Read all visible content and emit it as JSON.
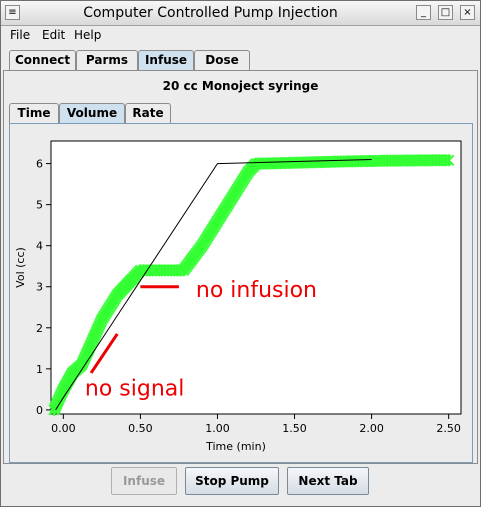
{
  "window": {
    "title": "Computer Controlled Pump Injection"
  },
  "menu": [
    "File",
    "Edit",
    "Help"
  ],
  "main_tabs": [
    {
      "label": "Connect",
      "selected": false
    },
    {
      "label": "Parms",
      "selected": false
    },
    {
      "label": "Infuse",
      "selected": true
    },
    {
      "label": "Dose",
      "selected": false
    }
  ],
  "syringe_label": "20 cc Monoject syringe",
  "sub_tabs": [
    {
      "label": "Time",
      "selected": false
    },
    {
      "label": "Volume",
      "selected": true
    },
    {
      "label": "Rate",
      "selected": false
    }
  ],
  "annotations": {
    "no_infusion": "no infusion",
    "no_signal": "no signal"
  },
  "buttons": {
    "infuse": "Infuse",
    "stop": "Stop Pump",
    "next": "Next Tab"
  },
  "chart_data": {
    "type": "line",
    "xlabel": "Time (min)",
    "ylabel": "Vol (cc)",
    "xlim": [
      -0.08,
      2.58
    ],
    "ylim": [
      -0.1,
      6.55
    ],
    "x_ticks": [
      "0.00",
      "0.50",
      "1.00",
      "1.50",
      "2.00",
      "2.50"
    ],
    "x_tick_values": [
      0,
      0.5,
      1.0,
      1.5,
      2.0,
      2.5
    ],
    "y_ticks": [
      "0",
      "1",
      "2",
      "3",
      "4",
      "5",
      "6"
    ],
    "y_tick_values": [
      0,
      1,
      2,
      3,
      4,
      5,
      6
    ],
    "series": [
      {
        "style": "line",
        "color": "#000000",
        "x": [
          -0.05,
          0.0,
          1.0,
          2.0
        ],
        "y": [
          0,
          0.3,
          6.0,
          6.1
        ]
      },
      {
        "style": "markers",
        "color": "#33ff33",
        "x": [
          -0.06,
          0.0,
          0.06,
          0.12,
          0.25,
          0.35,
          0.45,
          0.5,
          0.6,
          0.7,
          0.78,
          0.9,
          1.0,
          1.1,
          1.2,
          1.25,
          1.3,
          1.5,
          1.8,
          2.1,
          2.4,
          2.5
        ],
        "y": [
          0.0,
          0.5,
          0.9,
          1.1,
          2.2,
          2.8,
          3.2,
          3.4,
          3.4,
          3.4,
          3.4,
          4.0,
          4.6,
          5.2,
          5.8,
          6.0,
          6.0,
          6.02,
          6.05,
          6.07,
          6.08,
          6.08
        ]
      }
    ]
  }
}
